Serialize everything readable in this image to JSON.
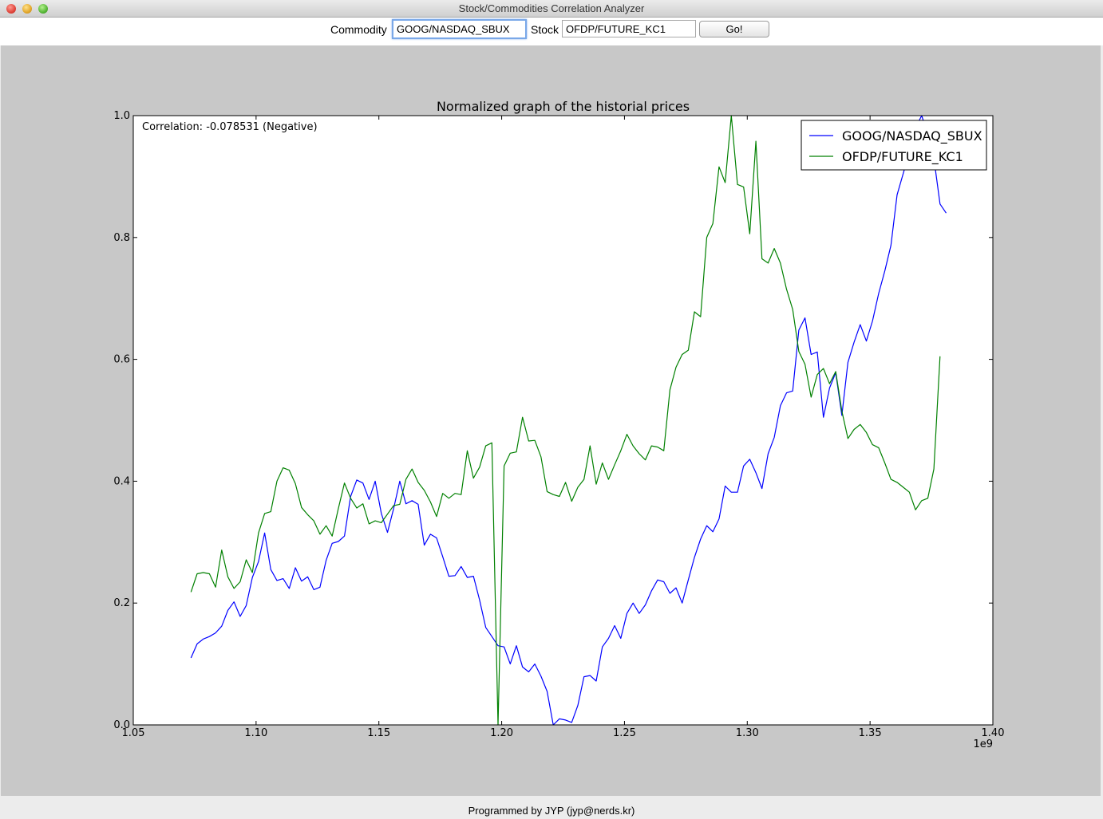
{
  "window": {
    "title": "Stock/Commodities Correlation Analyzer"
  },
  "toolbar": {
    "commodity_label": "Commodity",
    "commodity_value": "GOOG/NASDAQ_SBUX",
    "stock_label": "Stock",
    "stock_value": "OFDP/FUTURE_KC1",
    "go_label": "Go!"
  },
  "footer": {
    "text": "Programmed by JYP (jyp@nerds.kr)"
  },
  "colors": {
    "series_blue": "#0000ff",
    "series_green": "#008000",
    "figure_bg": "#c8c8c8",
    "axes_bg": "#ffffff"
  },
  "chart_data": {
    "type": "line",
    "title": "Normalized graph of the historial prices",
    "annotation": "Correlation: -0.078531 (Negative)",
    "x_offset_label": "1e9",
    "xlim": [
      1.05,
      1.4
    ],
    "ylim": [
      0.0,
      1.0
    ],
    "xticks": [
      1.05,
      1.1,
      1.15,
      1.2,
      1.25,
      1.3,
      1.35,
      1.4
    ],
    "xtick_labels": [
      "1.05",
      "1.10",
      "1.15",
      "1.20",
      "1.25",
      "1.30",
      "1.35",
      "1.40"
    ],
    "yticks": [
      0.0,
      0.2,
      0.4,
      0.6,
      0.8,
      1.0
    ],
    "ytick_labels": [
      "0.0",
      "0.2",
      "0.4",
      "0.6",
      "0.8",
      "1.0"
    ],
    "grid": false,
    "legend_position": "top-right",
    "series": [
      {
        "name": "GOOG/NASDAQ_SBUX",
        "color": "#0000ff",
        "points": [
          [
            1.0735,
            0.11
          ],
          [
            1.076,
            0.133
          ],
          [
            1.0785,
            0.141
          ],
          [
            1.081,
            0.145
          ],
          [
            1.0835,
            0.151
          ],
          [
            1.086,
            0.162
          ],
          [
            1.0885,
            0.188
          ],
          [
            1.091,
            0.202
          ],
          [
            1.0935,
            0.178
          ],
          [
            1.096,
            0.196
          ],
          [
            1.0985,
            0.242
          ],
          [
            1.101,
            0.268
          ],
          [
            1.1035,
            0.315
          ],
          [
            1.106,
            0.255
          ],
          [
            1.1085,
            0.237
          ],
          [
            1.111,
            0.24
          ],
          [
            1.1135,
            0.224
          ],
          [
            1.116,
            0.258
          ],
          [
            1.1185,
            0.236
          ],
          [
            1.121,
            0.243
          ],
          [
            1.1235,
            0.222
          ],
          [
            1.126,
            0.226
          ],
          [
            1.1285,
            0.27
          ],
          [
            1.131,
            0.298
          ],
          [
            1.1335,
            0.301
          ],
          [
            1.136,
            0.31
          ],
          [
            1.1385,
            0.375
          ],
          [
            1.141,
            0.402
          ],
          [
            1.1435,
            0.397
          ],
          [
            1.146,
            0.37
          ],
          [
            1.1485,
            0.4
          ],
          [
            1.151,
            0.347
          ],
          [
            1.1535,
            0.316
          ],
          [
            1.156,
            0.355
          ],
          [
            1.1585,
            0.4
          ],
          [
            1.161,
            0.363
          ],
          [
            1.1635,
            0.368
          ],
          [
            1.166,
            0.362
          ],
          [
            1.1685,
            0.295
          ],
          [
            1.171,
            0.313
          ],
          [
            1.1735,
            0.307
          ],
          [
            1.176,
            0.276
          ],
          [
            1.1785,
            0.244
          ],
          [
            1.181,
            0.245
          ],
          [
            1.1835,
            0.26
          ],
          [
            1.186,
            0.242
          ],
          [
            1.1885,
            0.244
          ],
          [
            1.191,
            0.205
          ],
          [
            1.1935,
            0.16
          ],
          [
            1.196,
            0.145
          ],
          [
            1.1985,
            0.13
          ],
          [
            1.201,
            0.128
          ],
          [
            1.2035,
            0.1
          ],
          [
            1.206,
            0.13
          ],
          [
            1.2085,
            0.095
          ],
          [
            1.211,
            0.087
          ],
          [
            1.2135,
            0.1
          ],
          [
            1.216,
            0.08
          ],
          [
            1.2185,
            0.055
          ],
          [
            1.221,
            0.0
          ],
          [
            1.2235,
            0.01
          ],
          [
            1.226,
            0.008
          ],
          [
            1.2285,
            0.004
          ],
          [
            1.231,
            0.032
          ],
          [
            1.2335,
            0.079
          ],
          [
            1.236,
            0.081
          ],
          [
            1.2385,
            0.072
          ],
          [
            1.241,
            0.128
          ],
          [
            1.2435,
            0.142
          ],
          [
            1.246,
            0.163
          ],
          [
            1.2485,
            0.142
          ],
          [
            1.251,
            0.183
          ],
          [
            1.2535,
            0.2
          ],
          [
            1.256,
            0.183
          ],
          [
            1.2585,
            0.197
          ],
          [
            1.261,
            0.22
          ],
          [
            1.2635,
            0.238
          ],
          [
            1.266,
            0.235
          ],
          [
            1.2685,
            0.216
          ],
          [
            1.271,
            0.225
          ],
          [
            1.2735,
            0.2
          ],
          [
            1.276,
            0.238
          ],
          [
            1.2785,
            0.275
          ],
          [
            1.281,
            0.305
          ],
          [
            1.2835,
            0.327
          ],
          [
            1.286,
            0.317
          ],
          [
            1.2885,
            0.338
          ],
          [
            1.291,
            0.392
          ],
          [
            1.2935,
            0.382
          ],
          [
            1.296,
            0.382
          ],
          [
            1.2985,
            0.425
          ],
          [
            1.301,
            0.436
          ],
          [
            1.3035,
            0.414
          ],
          [
            1.306,
            0.388
          ],
          [
            1.3085,
            0.445
          ],
          [
            1.311,
            0.472
          ],
          [
            1.3135,
            0.524
          ],
          [
            1.316,
            0.545
          ],
          [
            1.3185,
            0.548
          ],
          [
            1.321,
            0.648
          ],
          [
            1.3235,
            0.668
          ],
          [
            1.326,
            0.608
          ],
          [
            1.3285,
            0.612
          ],
          [
            1.331,
            0.505
          ],
          [
            1.3335,
            0.553
          ],
          [
            1.336,
            0.578
          ],
          [
            1.3385,
            0.508
          ],
          [
            1.341,
            0.595
          ],
          [
            1.3435,
            0.628
          ],
          [
            1.346,
            0.657
          ],
          [
            1.3485,
            0.63
          ],
          [
            1.351,
            0.663
          ],
          [
            1.3535,
            0.708
          ],
          [
            1.356,
            0.745
          ],
          [
            1.3585,
            0.787
          ],
          [
            1.361,
            0.87
          ],
          [
            1.3635,
            0.905
          ],
          [
            1.366,
            0.94
          ],
          [
            1.3685,
            0.98
          ],
          [
            1.371,
            1.0
          ],
          [
            1.3735,
            0.97
          ],
          [
            1.376,
            0.93
          ],
          [
            1.3785,
            0.855
          ],
          [
            1.381,
            0.84
          ]
        ]
      },
      {
        "name": "OFDP/FUTURE_KC1",
        "color": "#008000",
        "points": [
          [
            1.0735,
            0.218
          ],
          [
            1.076,
            0.248
          ],
          [
            1.0785,
            0.25
          ],
          [
            1.081,
            0.248
          ],
          [
            1.0835,
            0.226
          ],
          [
            1.086,
            0.287
          ],
          [
            1.0885,
            0.243
          ],
          [
            1.091,
            0.224
          ],
          [
            1.0935,
            0.235
          ],
          [
            1.096,
            0.271
          ],
          [
            1.0985,
            0.25
          ],
          [
            1.101,
            0.315
          ],
          [
            1.1035,
            0.347
          ],
          [
            1.106,
            0.35
          ],
          [
            1.1085,
            0.4
          ],
          [
            1.111,
            0.422
          ],
          [
            1.1135,
            0.418
          ],
          [
            1.116,
            0.396
          ],
          [
            1.1185,
            0.357
          ],
          [
            1.121,
            0.345
          ],
          [
            1.1235,
            0.335
          ],
          [
            1.126,
            0.313
          ],
          [
            1.1285,
            0.327
          ],
          [
            1.131,
            0.31
          ],
          [
            1.1335,
            0.355
          ],
          [
            1.136,
            0.397
          ],
          [
            1.1385,
            0.372
          ],
          [
            1.141,
            0.356
          ],
          [
            1.1435,
            0.363
          ],
          [
            1.146,
            0.33
          ],
          [
            1.1485,
            0.335
          ],
          [
            1.151,
            0.332
          ],
          [
            1.1535,
            0.346
          ],
          [
            1.156,
            0.36
          ],
          [
            1.1585,
            0.362
          ],
          [
            1.161,
            0.403
          ],
          [
            1.1635,
            0.42
          ],
          [
            1.166,
            0.398
          ],
          [
            1.1685,
            0.385
          ],
          [
            1.171,
            0.366
          ],
          [
            1.1735,
            0.342
          ],
          [
            1.176,
            0.38
          ],
          [
            1.1785,
            0.372
          ],
          [
            1.181,
            0.38
          ],
          [
            1.1835,
            0.378
          ],
          [
            1.186,
            0.45
          ],
          [
            1.1885,
            0.405
          ],
          [
            1.191,
            0.423
          ],
          [
            1.1935,
            0.458
          ],
          [
            1.196,
            0.463
          ],
          [
            1.1985,
            0.0
          ],
          [
            1.201,
            0.425
          ],
          [
            1.2035,
            0.446
          ],
          [
            1.206,
            0.448
          ],
          [
            1.2085,
            0.505
          ],
          [
            1.211,
            0.466
          ],
          [
            1.2135,
            0.467
          ],
          [
            1.216,
            0.44
          ],
          [
            1.2185,
            0.383
          ],
          [
            1.221,
            0.378
          ],
          [
            1.2235,
            0.375
          ],
          [
            1.226,
            0.398
          ],
          [
            1.2285,
            0.367
          ],
          [
            1.231,
            0.39
          ],
          [
            1.2335,
            0.403
          ],
          [
            1.236,
            0.458
          ],
          [
            1.2385,
            0.395
          ],
          [
            1.241,
            0.43
          ],
          [
            1.2435,
            0.403
          ],
          [
            1.246,
            0.427
          ],
          [
            1.2485,
            0.45
          ],
          [
            1.251,
            0.477
          ],
          [
            1.2535,
            0.458
          ],
          [
            1.256,
            0.445
          ],
          [
            1.2585,
            0.435
          ],
          [
            1.261,
            0.458
          ],
          [
            1.2635,
            0.456
          ],
          [
            1.266,
            0.45
          ],
          [
            1.2685,
            0.55
          ],
          [
            1.271,
            0.587
          ],
          [
            1.2735,
            0.608
          ],
          [
            1.276,
            0.615
          ],
          [
            1.2785,
            0.678
          ],
          [
            1.281,
            0.67
          ],
          [
            1.2835,
            0.8
          ],
          [
            1.286,
            0.823
          ],
          [
            1.2885,
            0.916
          ],
          [
            1.291,
            0.89
          ],
          [
            1.2935,
            1.0
          ],
          [
            1.296,
            0.887
          ],
          [
            1.2985,
            0.883
          ],
          [
            1.301,
            0.806
          ],
          [
            1.3035,
            0.958
          ],
          [
            1.306,
            0.765
          ],
          [
            1.3085,
            0.758
          ],
          [
            1.311,
            0.782
          ],
          [
            1.3135,
            0.758
          ],
          [
            1.316,
            0.715
          ],
          [
            1.3185,
            0.682
          ],
          [
            1.321,
            0.613
          ],
          [
            1.3235,
            0.592
          ],
          [
            1.326,
            0.538
          ],
          [
            1.3285,
            0.575
          ],
          [
            1.331,
            0.585
          ],
          [
            1.3335,
            0.56
          ],
          [
            1.336,
            0.58
          ],
          [
            1.3385,
            0.515
          ],
          [
            1.341,
            0.47
          ],
          [
            1.3435,
            0.485
          ],
          [
            1.346,
            0.493
          ],
          [
            1.3485,
            0.48
          ],
          [
            1.351,
            0.46
          ],
          [
            1.3535,
            0.455
          ],
          [
            1.356,
            0.43
          ],
          [
            1.3585,
            0.403
          ],
          [
            1.361,
            0.398
          ],
          [
            1.3635,
            0.39
          ],
          [
            1.366,
            0.382
          ],
          [
            1.3685,
            0.353
          ],
          [
            1.371,
            0.368
          ],
          [
            1.3735,
            0.372
          ],
          [
            1.376,
            0.42
          ],
          [
            1.3785,
            0.605
          ]
        ]
      }
    ]
  }
}
